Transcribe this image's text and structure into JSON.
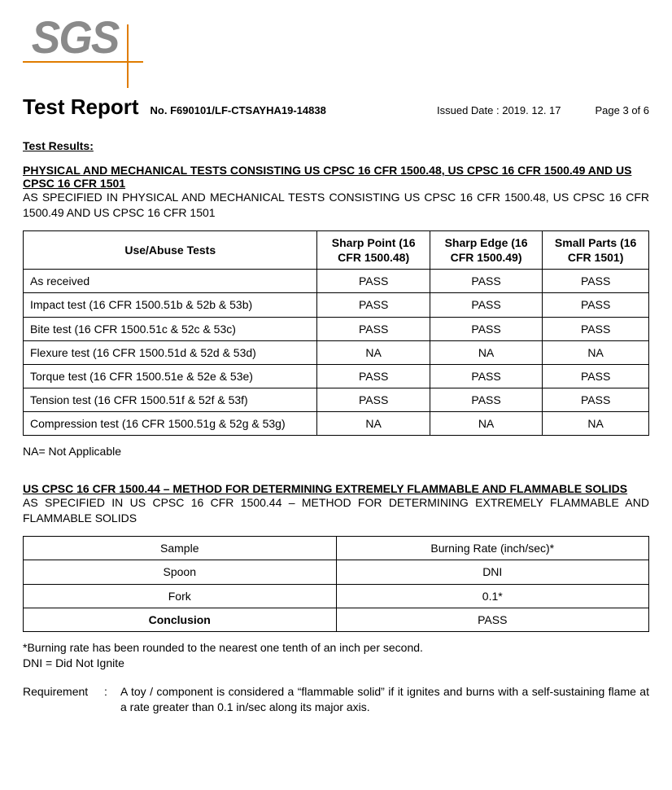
{
  "logo": {
    "text": "SGS",
    "line_color": "#e07c00",
    "text_color": "#8a8a8a"
  },
  "header": {
    "title": "Test Report",
    "number_label": "No. F690101/LF-CTSAYHA19-14838",
    "issued": "Issued Date : 2019. 12. 17",
    "page": "Page 3 of 6"
  },
  "results_label": "Test Results:",
  "section1": {
    "title": "PHYSICAL AND MECHANICAL TESTS CONSISTING US CPSC 16 CFR 1500.48, US CPSC 16 CFR 1500.49 AND US CPSC 16 CFR 1501",
    "subtitle": "AS SPECIFIED IN PHYSICAL AND MECHANICAL TESTS CONSISTING US CPSC 16 CFR 1500.48, US CPSC 16 CFR 1500.49 AND US CPSC 16 CFR 1501",
    "cols": [
      "Use/Abuse Tests",
      "Sharp Point (16 CFR 1500.48)",
      "Sharp Edge (16 CFR 1500.49)",
      "Small Parts (16 CFR 1501)"
    ],
    "rows": [
      {
        "label": "As received",
        "v": [
          "PASS",
          "PASS",
          "PASS"
        ]
      },
      {
        "label": "Impact test (16 CFR 1500.51b & 52b & 53b)",
        "v": [
          "PASS",
          "PASS",
          "PASS"
        ]
      },
      {
        "label": "Bite test (16 CFR 1500.51c & 52c & 53c)",
        "v": [
          "PASS",
          "PASS",
          "PASS"
        ]
      },
      {
        "label": "Flexure test (16 CFR 1500.51d & 52d & 53d)",
        "v": [
          "NA",
          "NA",
          "NA"
        ]
      },
      {
        "label": "Torque test (16 CFR 1500.51e & 52e & 53e)",
        "v": [
          "PASS",
          "PASS",
          "PASS"
        ]
      },
      {
        "label": "Tension test (16 CFR 1500.51f & 52f & 53f)",
        "v": [
          "PASS",
          "PASS",
          "PASS"
        ]
      },
      {
        "label": "Compression test (16 CFR 1500.51g & 52g & 53g)",
        "v": [
          "NA",
          "NA",
          "NA"
        ]
      }
    ],
    "footnote": "NA= Not Applicable"
  },
  "section2": {
    "title": "US CPSC 16 CFR 1500.44 – METHOD FOR DETERMINING EXTREMELY FLAMMABLE AND FLAMMABLE SOLIDS",
    "subtitle": "AS SPECIFIED IN US CPSC 16 CFR 1500.44 – METHOD FOR DETERMINING EXTREMELY FLAMMABLE AND FLAMMABLE SOLIDS",
    "headers": [
      "Sample",
      "Burning Rate (inch/sec)*"
    ],
    "rows": [
      [
        "Spoon",
        "DNI"
      ],
      [
        "Fork",
        "0.1*"
      ]
    ],
    "conclusion_label": "Conclusion",
    "conclusion_value": "PASS",
    "foot1": "*Burning rate has been rounded to the nearest one tenth of an inch per second.",
    "foot2": "DNI = Did Not Ignite",
    "req_label": "Requirement",
    "req_colon": ":",
    "req_text": "A toy / component is considered a “flammable solid” if it ignites and burns with a self-sustaining flame at a rate greater than 0.1 in/sec along its major axis."
  }
}
